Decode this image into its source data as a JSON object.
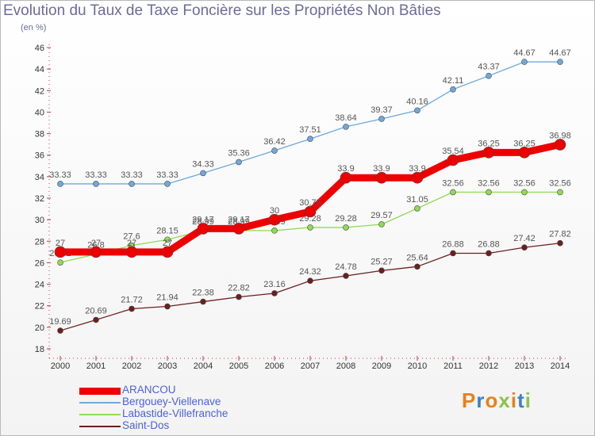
{
  "title": "Evolution du Taux de Taxe Foncière sur les Propriétés Non Bâties",
  "subtitle": "(en %)",
  "logo_text": "Proxiti",
  "chart_data": {
    "type": "line",
    "title": "Evolution du Taux de Taxe Foncière sur les Propriétés Non Bâties",
    "ylabel": "(en %)",
    "x": [
      "2000",
      "2001",
      "2002",
      "2003",
      "2004",
      "2005",
      "2006",
      "2007",
      "2008",
      "2009",
      "2010",
      "2011",
      "2012",
      "2013",
      "2014"
    ],
    "ylim": [
      18,
      46
    ],
    "yticks": [
      18,
      20,
      22,
      24,
      26,
      28,
      30,
      32,
      34,
      36,
      38,
      40,
      42,
      44,
      46
    ],
    "grid": false,
    "legend_position": "bottom-left",
    "series": [
      {
        "name": "ARANCOU",
        "color": "#ee0000",
        "values": [
          27,
          27,
          27,
          27,
          29.17,
          29.17,
          30,
          30.75,
          33.9,
          33.9,
          33.9,
          35.54,
          36.25,
          36.25,
          36.98
        ],
        "labels": [
          "27",
          "27",
          "27",
          "27",
          "29.17",
          "29.17",
          "30",
          "30.75",
          "33.9",
          "33.9",
          "33.9",
          "35.54",
          "36.25",
          "36.25",
          "36.98"
        ]
      },
      {
        "name": "Bergouey-Viellenave",
        "color": "#6fa8dc",
        "values": [
          33.33,
          33.33,
          33.33,
          33.33,
          34.33,
          35.36,
          36.42,
          37.51,
          38.64,
          39.37,
          40.16,
          42.11,
          43.37,
          44.67,
          44.67
        ],
        "labels": [
          "33.33",
          "33.33",
          "33.33",
          "33.33",
          "34.33",
          "35.36",
          "36.42",
          "37.51",
          "38.64",
          "39.37",
          "40.16",
          "42.11",
          "43.37",
          "44.67",
          "44.67"
        ]
      },
      {
        "name": "Labastide-Villefranche",
        "color": "#8fdc52",
        "values": [
          26.02,
          26.8,
          27.6,
          28.15,
          28.99,
          28.99,
          28.99,
          29.28,
          29.28,
          29.57,
          31.05,
          32.56,
          32.56,
          32.56,
          32.56
        ],
        "labels": [
          "26.02",
          "26.8",
          "27.6",
          "28.15",
          "28.99",
          "28.99",
          "28.99",
          "29.28",
          "29.28",
          "29.57",
          "31.05",
          "32.56",
          "32.56",
          "32.56",
          "32.56"
        ]
      },
      {
        "name": "Saint-Dos",
        "color": "#6b1f1f",
        "values": [
          19.69,
          20.69,
          21.72,
          21.94,
          22.38,
          22.82,
          23.16,
          24.32,
          24.78,
          25.27,
          25.64,
          26.88,
          26.88,
          27.42,
          27.82
        ],
        "labels": [
          "19.69",
          "20.69",
          "21.72",
          "21.94",
          "22.38",
          "22.82",
          "23.16",
          "24.32",
          "24.78",
          "25.27",
          "25.64",
          "26.88",
          "26.88",
          "27.42",
          "27.82"
        ]
      }
    ]
  }
}
